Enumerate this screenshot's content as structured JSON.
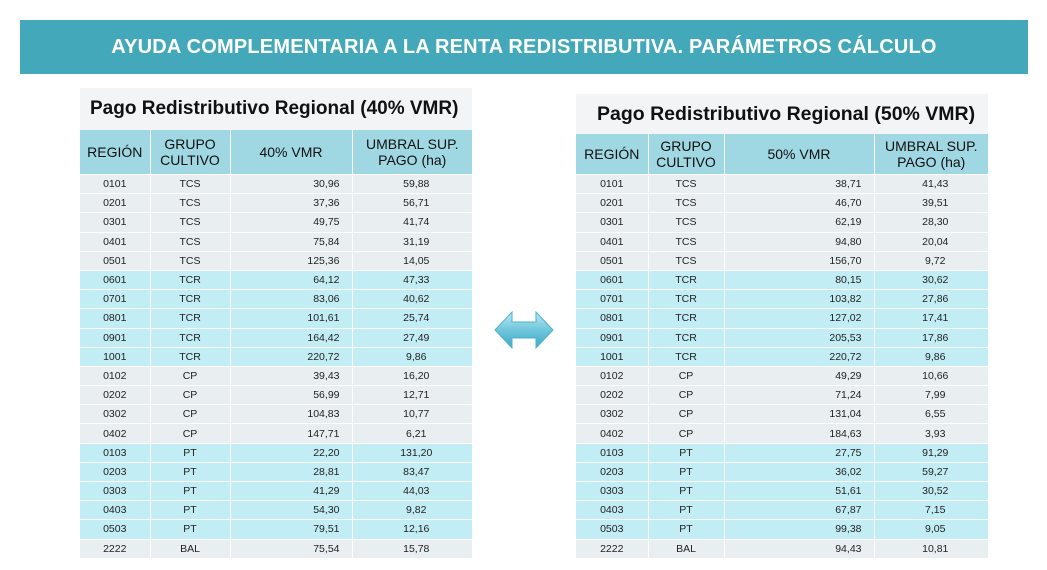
{
  "banner": {
    "title": "AYUDA COMPLEMENTARIA A LA RENTA REDISTRIBUTIVA. PARÁMETROS CÁLCULO"
  },
  "colors": {
    "banner": "#43a9ba",
    "header": "#9fd7e3",
    "row_blue": "#c3edf5",
    "row_grey": "#e9eef0",
    "arrow": "#6fc6dc"
  },
  "icons": {
    "swap": "double-headed-arrow-icon"
  },
  "left": {
    "title": "Pago Redistributivo Regional (40% VMR)",
    "headers": [
      "REGIÓN",
      "GRUPO CULTIVO",
      "40% VMR",
      "UMBRAL SUP. PAGO (ha)"
    ],
    "rows": [
      [
        "0101",
        "TCS",
        "30,96",
        "59,88"
      ],
      [
        "0201",
        "TCS",
        "37,36",
        "56,71"
      ],
      [
        "0301",
        "TCS",
        "49,75",
        "41,74"
      ],
      [
        "0401",
        "TCS",
        "75,84",
        "31,19"
      ],
      [
        "0501",
        "TCS",
        "125,36",
        "14,05"
      ],
      [
        "0601",
        "TCR",
        "64,12",
        "47,33"
      ],
      [
        "0701",
        "TCR",
        "83,06",
        "40,62"
      ],
      [
        "0801",
        "TCR",
        "101,61",
        "25,74"
      ],
      [
        "0901",
        "TCR",
        "164,42",
        "27,49"
      ],
      [
        "1001",
        "TCR",
        "220,72",
        "9,86"
      ],
      [
        "0102",
        "CP",
        "39,43",
        "16,20"
      ],
      [
        "0202",
        "CP",
        "56,99",
        "12,71"
      ],
      [
        "0302",
        "CP",
        "104,83",
        "10,77"
      ],
      [
        "0402",
        "CP",
        "147,71",
        "6,21"
      ],
      [
        "0103",
        "PT",
        "22,20",
        "131,20"
      ],
      [
        "0203",
        "PT",
        "28,81",
        "83,47"
      ],
      [
        "0303",
        "PT",
        "41,29",
        "44,03"
      ],
      [
        "0403",
        "PT",
        "54,30",
        "9,82"
      ],
      [
        "0503",
        "PT",
        "79,51",
        "12,16"
      ],
      [
        "2222",
        "BAL",
        "75,54",
        "15,78"
      ]
    ]
  },
  "right": {
    "title": "Pago Redistributivo Regional (50% VMR)",
    "headers": [
      "REGIÓN",
      "GRUPO CULTIVO",
      "50% VMR",
      "UMBRAL SUP. PAGO (ha)"
    ],
    "rows": [
      [
        "0101",
        "TCS",
        "38,71",
        "41,43"
      ],
      [
        "0201",
        "TCS",
        "46,70",
        "39,51"
      ],
      [
        "0301",
        "TCS",
        "62,19",
        "28,30"
      ],
      [
        "0401",
        "TCS",
        "94,80",
        "20,04"
      ],
      [
        "0501",
        "TCS",
        "156,70",
        "9,72"
      ],
      [
        "0601",
        "TCR",
        "80,15",
        "30,62"
      ],
      [
        "0701",
        "TCR",
        "103,82",
        "27,86"
      ],
      [
        "0801",
        "TCR",
        "127,02",
        "17,41"
      ],
      [
        "0901",
        "TCR",
        "205,53",
        "17,86"
      ],
      [
        "1001",
        "TCR",
        "220,72",
        "9,86"
      ],
      [
        "0102",
        "CP",
        "49,29",
        "10,66"
      ],
      [
        "0202",
        "CP",
        "71,24",
        "7,99"
      ],
      [
        "0302",
        "CP",
        "131,04",
        "6,55"
      ],
      [
        "0402",
        "CP",
        "184,63",
        "3,93"
      ],
      [
        "0103",
        "PT",
        "27,75",
        "91,29"
      ],
      [
        "0203",
        "PT",
        "36,02",
        "59,27"
      ],
      [
        "0303",
        "PT",
        "51,61",
        "30,52"
      ],
      [
        "0403",
        "PT",
        "67,87",
        "7,15"
      ],
      [
        "0503",
        "PT",
        "99,38",
        "9,05"
      ],
      [
        "2222",
        "BAL",
        "94,43",
        "10,81"
      ]
    ]
  }
}
